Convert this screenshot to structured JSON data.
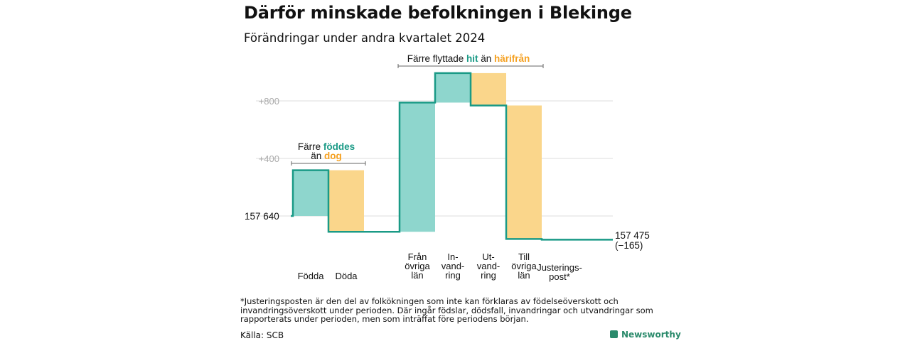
{
  "title": "Därför minskade befolkningen i Blekinge",
  "subtitle": "Förändringar under andra kvartalet 2024",
  "chart_data": {
    "type": "waterfall",
    "start_value": 157640,
    "start_label": "157  640",
    "end_value": 157475,
    "end_label": "157 475",
    "end_change_label": "(−165)",
    "y_ticks": [
      {
        "value": 0,
        "label": ""
      },
      {
        "value": 400,
        "label": "+400"
      },
      {
        "value": 800,
        "label": "+800"
      }
    ],
    "ylim": [
      -200,
      1000
    ],
    "steps": [
      {
        "label": [
          "Födda"
        ],
        "value": 318
      },
      {
        "label": [
          "Döda"
        ],
        "value": -428
      },
      {
        "label": [],
        "value": 0
      },
      {
        "label": [
          "Från",
          "övriga",
          "län"
        ],
        "value": 898
      },
      {
        "label": [
          "In-",
          "vand-",
          "ring"
        ],
        "value": 205
      },
      {
        "label": [
          "Ut-",
          "vand-",
          "ring"
        ],
        "value": -225
      },
      {
        "label": [
          "Till",
          "övriga",
          "län"
        ],
        "value": -928
      },
      {
        "label": [
          "Justerings-",
          "post*"
        ],
        "value": -5
      }
    ],
    "colors": {
      "increase": "#8ed6cd",
      "decrease": "#fad68b",
      "line": "#1a9a86",
      "grid": "#dcdcdc"
    },
    "annotations": [
      {
        "prefix": "Färre",
        "word1": "föddes",
        "mid": "än",
        "word2": "dog"
      },
      {
        "prefix": "Färre flyttade",
        "word1": "hit",
        "mid": "än",
        "word2": "härifrån"
      }
    ],
    "highlight_colors": {
      "teal": "#1a9a86",
      "orange": "#f5a020"
    }
  },
  "footnote": "*Justeringsposten är den del av folkökningen som inte kan förklaras av födelseöverskott och invandringsöverskott under perioden. Där ingår födslar, dödsfall, invandringar och utvandringar som rapporterats under perioden, men som inträffat före periodens början.",
  "source": "Källa: SCB",
  "brand": "Newsworthy"
}
